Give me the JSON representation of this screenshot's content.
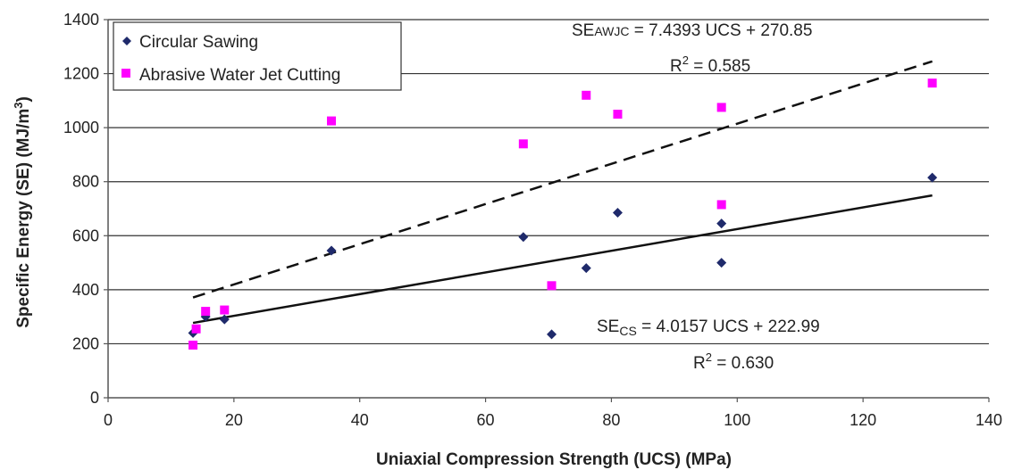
{
  "chart_data": {
    "type": "scatter",
    "xlabel": "Uniaxial Compression Strength (UCS) (MPa)",
    "ylabel_main": "Specific Energy (SE) (MJ/m",
    "ylabel_sup": "3",
    "ylabel_close": ")",
    "xlim": [
      0,
      140
    ],
    "ylim": [
      0,
      1400
    ],
    "xticks": [
      0,
      20,
      40,
      60,
      80,
      100,
      120,
      140
    ],
    "yticks": [
      0,
      200,
      400,
      600,
      800,
      1000,
      1200,
      1400
    ],
    "grid": "horizontal",
    "legend_position": "top-left",
    "series": [
      {
        "name": "Circular Sawing",
        "marker": "diamond",
        "color": "#1f2a6b",
        "points": [
          {
            "x": 13.5,
            "y": 240
          },
          {
            "x": 15.5,
            "y": 300
          },
          {
            "x": 18.5,
            "y": 290
          },
          {
            "x": 35.5,
            "y": 545
          },
          {
            "x": 66,
            "y": 595
          },
          {
            "x": 70.5,
            "y": 235
          },
          {
            "x": 76,
            "y": 480
          },
          {
            "x": 81,
            "y": 685
          },
          {
            "x": 97.5,
            "y": 645
          },
          {
            "x": 97.5,
            "y": 500
          },
          {
            "x": 131,
            "y": 815
          }
        ]
      },
      {
        "name": "Abrasive Water Jet Cutting",
        "marker": "square",
        "color": "#ff00ff",
        "points": [
          {
            "x": 13.5,
            "y": 195
          },
          {
            "x": 14,
            "y": 255
          },
          {
            "x": 15.5,
            "y": 320
          },
          {
            "x": 18.5,
            "y": 325
          },
          {
            "x": 35.5,
            "y": 1025
          },
          {
            "x": 66,
            "y": 940
          },
          {
            "x": 70.5,
            "y": 415
          },
          {
            "x": 76,
            "y": 1120
          },
          {
            "x": 81,
            "y": 1050
          },
          {
            "x": 97.5,
            "y": 1075
          },
          {
            "x": 97.5,
            "y": 715
          },
          {
            "x": 131,
            "y": 1165
          }
        ]
      }
    ],
    "trendlines": [
      {
        "series": "Abrasive Water Jet Cutting",
        "style": "dashed",
        "slope": 7.4393,
        "intercept": 270.85,
        "x_range": [
          13.5,
          131
        ]
      },
      {
        "series": "Circular Sawing",
        "style": "solid",
        "slope": 4.0157,
        "intercept": 222.99,
        "x_range": [
          13.5,
          131
        ]
      }
    ],
    "annotations": {
      "awjc_se": "SE",
      "awjc_sub": "AWJC",
      "awjc_rest": " = 7.4393 UCS + 270.85",
      "awjc_r2_pre": "R",
      "awjc_r2_sup": "2",
      "awjc_r2_rest": " = 0.585",
      "cs_se": "SE",
      "cs_sub": "CS",
      "cs_rest": " = 4.0157 UCS + 222.99",
      "cs_r2_pre": "R",
      "cs_r2_sup": "2",
      "cs_r2_rest": " = 0.630"
    }
  }
}
